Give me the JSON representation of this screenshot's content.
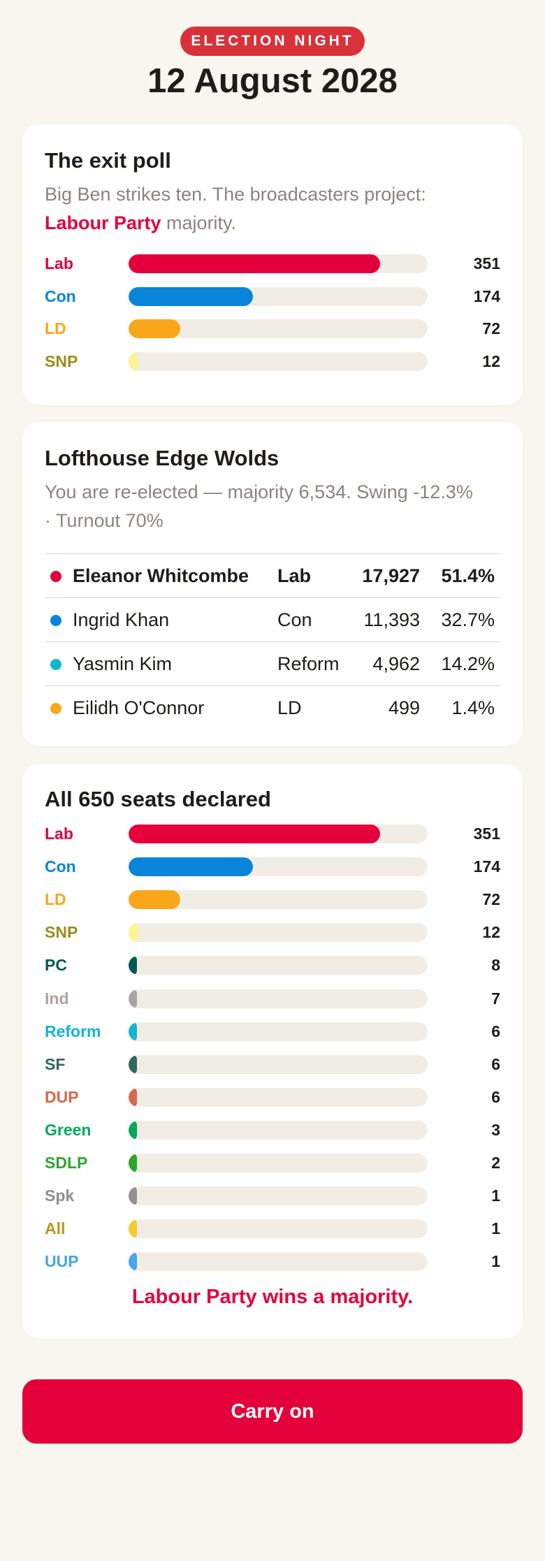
{
  "header": {
    "badge": "ELECTION NIGHT",
    "date": "12 August 2028"
  },
  "exit_poll": {
    "title": "The exit poll",
    "subtitle_prefix": "Big Ben strikes ten. The broadcasters project: ",
    "projected_party": "Labour Party",
    "subtitle_suffix": " majority.",
    "bars": [
      {
        "label": "Lab",
        "value": "351",
        "fraction": 0.84,
        "color": "#e4003b"
      },
      {
        "label": "Con",
        "value": "174",
        "fraction": 0.416,
        "color": "#0a84d8"
      },
      {
        "label": "LD",
        "value": "72",
        "fraction": 0.172,
        "color": "#faa61a"
      },
      {
        "label": "SNP",
        "value": "12",
        "fraction": 0.03,
        "color": "#fdf38e",
        "label_color": "#9b8e1a"
      }
    ]
  },
  "constituency": {
    "title": "Lofthouse Edge Wolds",
    "subtitle": "You are re-elected — majority 6,534. Swing -12.3% · Turnout 70%",
    "candidates": [
      {
        "name": "Eleanor Whitcombe",
        "party": "Lab",
        "votes": "17,927",
        "share": "51.4%",
        "color": "#e4003b",
        "winner": true
      },
      {
        "name": "Ingrid Khan",
        "party": "Con",
        "votes": "11,393",
        "share": "32.7%",
        "color": "#0a84d8",
        "winner": false
      },
      {
        "name": "Yasmin Kim",
        "party": "Reform",
        "votes": "4,962",
        "share": "14.2%",
        "color": "#12b6cf",
        "winner": false
      },
      {
        "name": "Eilidh O'Connor",
        "party": "LD",
        "votes": "499",
        "share": "1.4%",
        "color": "#faa61a",
        "winner": false
      }
    ]
  },
  "declared": {
    "title": "All 650 seats declared",
    "bars": [
      {
        "label": "Lab",
        "value": "351",
        "fraction": 0.84,
        "color": "#e4003b"
      },
      {
        "label": "Con",
        "value": "174",
        "fraction": 0.416,
        "color": "#0a84d8"
      },
      {
        "label": "LD",
        "value": "72",
        "fraction": 0.172,
        "color": "#faa61a"
      },
      {
        "label": "SNP",
        "value": "12",
        "fraction": 0.03,
        "color": "#fdf38e",
        "label_color": "#9b8e1a"
      },
      {
        "label": "PC",
        "value": "8",
        "fraction": 0.02,
        "color": "#005b54"
      },
      {
        "label": "Ind",
        "value": "7",
        "fraction": 0.017,
        "color": "#aaa59b"
      },
      {
        "label": "Reform",
        "value": "6",
        "fraction": 0.014,
        "color": "#12b6cf"
      },
      {
        "label": "SF",
        "value": "6",
        "fraction": 0.014,
        "color": "#326760"
      },
      {
        "label": "DUP",
        "value": "6",
        "fraction": 0.014,
        "color": "#d46a4c"
      },
      {
        "label": "Green",
        "value": "3",
        "fraction": 0.007,
        "color": "#02a95b"
      },
      {
        "label": "SDLP",
        "value": "2",
        "fraction": 0.005,
        "color": "#2aa82c"
      },
      {
        "label": "Spk",
        "value": "1",
        "fraction": 0.003,
        "color": "#909090"
      },
      {
        "label": "All",
        "value": "1",
        "fraction": 0.003,
        "color": "#f6cb2f",
        "label_color": "#b8971b"
      },
      {
        "label": "UUP",
        "value": "1",
        "fraction": 0.003,
        "color": "#48a5ee"
      }
    ],
    "result": "Labour Party wins a majority."
  },
  "button": {
    "label": "Carry on"
  }
}
